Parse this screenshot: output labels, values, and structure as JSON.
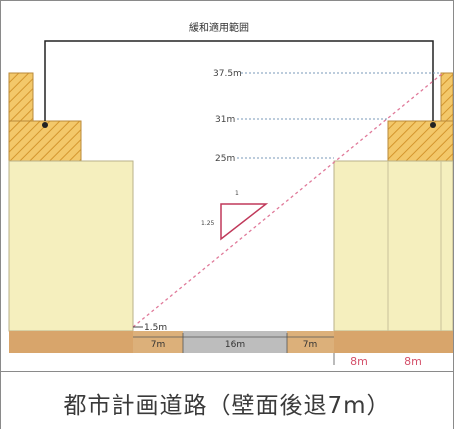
{
  "diagram": {
    "top_label": "緩和適用範囲",
    "height_labels": {
      "h375": "37.5m",
      "h31": "31m",
      "h25": "25m",
      "h15": "1.5m"
    },
    "slope_label": "1.25",
    "slope_rise": "1",
    "road_segments": {
      "sidewalk_left": "7m",
      "carriageway": "16m",
      "sidewalk_right": "7m"
    },
    "setback_labels": {
      "a": "8m",
      "b": "8m"
    },
    "colors": {
      "building": "#f5efbe",
      "hatch_fill": "#f3c86a",
      "hatch_line": "#d4962e",
      "ground": "#d8a56b",
      "road_gray": "#bdbdbd",
      "slope_line": "#e07a9a",
      "setback_text": "#d4506a"
    }
  },
  "caption": "都市計画道路（壁面後退7m）"
}
